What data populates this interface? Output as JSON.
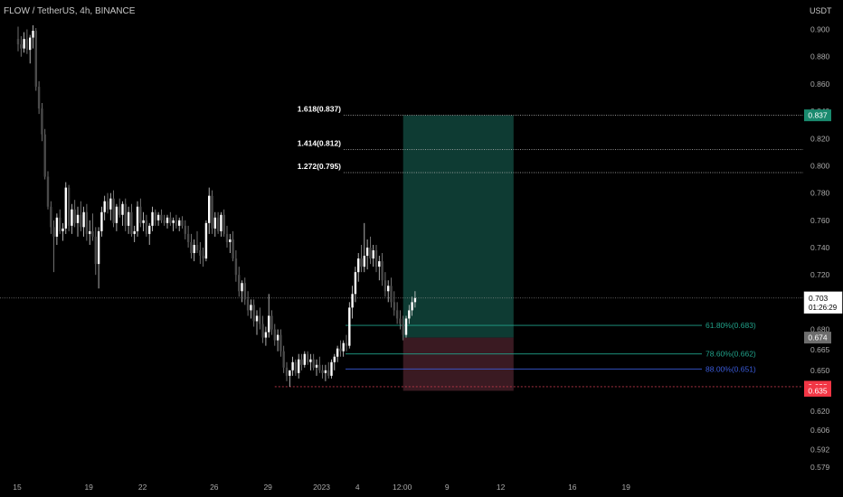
{
  "header": {
    "symbol": "FLOW / TetherUS, 4h, BINANCE",
    "unit": "USDT"
  },
  "colors": {
    "background": "#000000",
    "candle": "#ffffff",
    "wick": "#b0b0b0",
    "profit_zone": "#0e3b33",
    "loss_zone": "#3a1a22",
    "fib_teal": "#21a28a",
    "fib_blue": "#3b5bd9",
    "stop_line": "#c0394a",
    "target_badge": "#1a8a6e",
    "stop_badge": "#f23645",
    "gray_badge": "#6d6d6d",
    "axis_text": "#aaaaaa"
  },
  "chart_data": {
    "type": "candlestick",
    "ylim": [
      0.575,
      0.905
    ],
    "y_ticks": [
      "0.900",
      "0.880",
      "0.860",
      "0.840",
      "0.820",
      "0.800",
      "0.780",
      "0.760",
      "0.740",
      "0.720",
      "0.700",
      "0.680",
      "0.665",
      "0.650",
      "0.635",
      "0.620",
      "0.606",
      "0.592",
      "0.579"
    ],
    "y_tick_values": [
      0.9,
      0.88,
      0.86,
      0.84,
      0.82,
      0.8,
      0.78,
      0.76,
      0.74,
      0.72,
      0.7,
      0.68,
      0.665,
      0.65,
      0.635,
      0.62,
      0.606,
      0.592,
      0.579
    ],
    "x_ticks": [
      {
        "label": "15",
        "at": 0
      },
      {
        "label": "19",
        "at": 24
      },
      {
        "label": "22",
        "at": 42
      },
      {
        "label": "26",
        "at": 66
      },
      {
        "label": "29",
        "at": 84
      },
      {
        "label": "2023",
        "at": 102
      },
      {
        "label": "4",
        "at": 114
      },
      {
        "label": "12:00",
        "at": 129
      },
      {
        "label": "9",
        "at": 144
      },
      {
        "label": "12",
        "at": 162
      },
      {
        "label": "16",
        "at": 186
      },
      {
        "label": "19",
        "at": 204
      }
    ],
    "candles": [
      [
        0.893,
        0.902,
        0.884,
        0.889
      ],
      [
        0.889,
        0.895,
        0.88,
        0.886
      ],
      [
        0.886,
        0.898,
        0.883,
        0.893
      ],
      [
        0.893,
        0.9,
        0.882,
        0.885
      ],
      [
        0.885,
        0.896,
        0.875,
        0.894
      ],
      [
        0.894,
        0.903,
        0.886,
        0.899
      ],
      [
        0.899,
        0.901,
        0.855,
        0.858
      ],
      [
        0.858,
        0.862,
        0.838,
        0.842
      ],
      [
        0.842,
        0.846,
        0.818,
        0.823
      ],
      [
        0.823,
        0.827,
        0.79,
        0.792
      ],
      [
        0.792,
        0.796,
        0.768,
        0.77
      ],
      [
        0.77,
        0.774,
        0.75,
        0.755
      ],
      [
        0.755,
        0.76,
        0.722,
        0.748
      ],
      [
        0.748,
        0.765,
        0.742,
        0.762
      ],
      [
        0.762,
        0.768,
        0.75,
        0.752
      ],
      [
        0.752,
        0.758,
        0.745,
        0.754
      ],
      [
        0.754,
        0.788,
        0.75,
        0.784
      ],
      [
        0.784,
        0.786,
        0.752,
        0.756
      ],
      [
        0.756,
        0.772,
        0.75,
        0.768
      ],
      [
        0.768,
        0.775,
        0.755,
        0.758
      ],
      [
        0.758,
        0.77,
        0.748,
        0.764
      ],
      [
        0.764,
        0.774,
        0.752,
        0.755
      ],
      [
        0.755,
        0.77,
        0.748,
        0.766
      ],
      [
        0.766,
        0.772,
        0.745,
        0.75
      ],
      [
        0.75,
        0.76,
        0.742,
        0.752
      ],
      [
        0.752,
        0.765,
        0.745,
        0.748
      ],
      [
        0.748,
        0.755,
        0.72,
        0.728
      ],
      [
        0.728,
        0.755,
        0.71,
        0.752
      ],
      [
        0.752,
        0.77,
        0.748,
        0.766
      ],
      [
        0.766,
        0.778,
        0.76,
        0.774
      ],
      [
        0.774,
        0.78,
        0.765,
        0.768
      ],
      [
        0.768,
        0.78,
        0.76,
        0.776
      ],
      [
        0.776,
        0.782,
        0.755,
        0.758
      ],
      [
        0.758,
        0.772,
        0.752,
        0.77
      ],
      [
        0.77,
        0.776,
        0.762,
        0.764
      ],
      [
        0.764,
        0.774,
        0.756,
        0.772
      ],
      [
        0.772,
        0.776,
        0.752,
        0.756
      ],
      [
        0.756,
        0.77,
        0.75,
        0.766
      ],
      [
        0.766,
        0.772,
        0.748,
        0.75
      ],
      [
        0.75,
        0.756,
        0.744,
        0.752
      ],
      [
        0.752,
        0.774,
        0.748,
        0.77
      ],
      [
        0.77,
        0.776,
        0.755,
        0.758
      ],
      [
        0.758,
        0.766,
        0.752,
        0.76
      ],
      [
        0.76,
        0.764,
        0.748,
        0.75
      ],
      [
        0.75,
        0.758,
        0.742,
        0.756
      ],
      [
        0.756,
        0.77,
        0.752,
        0.766
      ],
      [
        0.766,
        0.768,
        0.756,
        0.76
      ],
      [
        0.76,
        0.766,
        0.756,
        0.764
      ],
      [
        0.764,
        0.768,
        0.758,
        0.76
      ],
      [
        0.76,
        0.764,
        0.756,
        0.758
      ],
      [
        0.758,
        0.764,
        0.754,
        0.762
      ],
      [
        0.762,
        0.766,
        0.756,
        0.758
      ],
      [
        0.758,
        0.762,
        0.752,
        0.76
      ],
      [
        0.76,
        0.764,
        0.754,
        0.756
      ],
      [
        0.756,
        0.762,
        0.752,
        0.76
      ],
      [
        0.76,
        0.763,
        0.754,
        0.756
      ],
      [
        0.756,
        0.76,
        0.746,
        0.75
      ],
      [
        0.75,
        0.756,
        0.74,
        0.744
      ],
      [
        0.744,
        0.75,
        0.732,
        0.736
      ],
      [
        0.736,
        0.746,
        0.73,
        0.742
      ],
      [
        0.742,
        0.752,
        0.736,
        0.738
      ],
      [
        0.738,
        0.744,
        0.728,
        0.734
      ],
      [
        0.734,
        0.74,
        0.726,
        0.732
      ],
      [
        0.732,
        0.76,
        0.73,
        0.758
      ],
      [
        0.758,
        0.784,
        0.75,
        0.778
      ],
      [
        0.778,
        0.782,
        0.75,
        0.754
      ],
      [
        0.754,
        0.766,
        0.748,
        0.762
      ],
      [
        0.762,
        0.766,
        0.75,
        0.752
      ],
      [
        0.752,
        0.766,
        0.748,
        0.764
      ],
      [
        0.764,
        0.768,
        0.748,
        0.75
      ],
      [
        0.75,
        0.756,
        0.74,
        0.744
      ],
      [
        0.744,
        0.75,
        0.736,
        0.746
      ],
      [
        0.746,
        0.752,
        0.73,
        0.732
      ],
      [
        0.732,
        0.738,
        0.715,
        0.72
      ],
      [
        0.72,
        0.726,
        0.704,
        0.708
      ],
      [
        0.708,
        0.716,
        0.7,
        0.714
      ],
      [
        0.714,
        0.718,
        0.698,
        0.702
      ],
      [
        0.702,
        0.708,
        0.69,
        0.694
      ],
      [
        0.694,
        0.702,
        0.688,
        0.698
      ],
      [
        0.698,
        0.702,
        0.682,
        0.686
      ],
      [
        0.686,
        0.694,
        0.676,
        0.69
      ],
      [
        0.69,
        0.696,
        0.68,
        0.684
      ],
      [
        0.684,
        0.69,
        0.67,
        0.674
      ],
      [
        0.674,
        0.682,
        0.668,
        0.678
      ],
      [
        0.678,
        0.706,
        0.674,
        0.69
      ],
      [
        0.69,
        0.694,
        0.676,
        0.68
      ],
      [
        0.68,
        0.684,
        0.668,
        0.672
      ],
      [
        0.672,
        0.68,
        0.664,
        0.676
      ],
      [
        0.676,
        0.68,
        0.66,
        0.664
      ],
      [
        0.664,
        0.668,
        0.648,
        0.652
      ],
      [
        0.652,
        0.656,
        0.642,
        0.646
      ],
      [
        0.646,
        0.65,
        0.638,
        0.65
      ],
      [
        0.65,
        0.66,
        0.646,
        0.656
      ],
      [
        0.656,
        0.658,
        0.646,
        0.648
      ],
      [
        0.648,
        0.662,
        0.644,
        0.658
      ],
      [
        0.658,
        0.662,
        0.65,
        0.654
      ],
      [
        0.654,
        0.664,
        0.652,
        0.662
      ],
      [
        0.662,
        0.664,
        0.654,
        0.656
      ],
      [
        0.656,
        0.662,
        0.65,
        0.658
      ],
      [
        0.658,
        0.662,
        0.65,
        0.652
      ],
      [
        0.652,
        0.658,
        0.646,
        0.654
      ],
      [
        0.654,
        0.66,
        0.648,
        0.65
      ],
      [
        0.65,
        0.654,
        0.644,
        0.648
      ],
      [
        0.648,
        0.654,
        0.642,
        0.65
      ],
      [
        0.65,
        0.656,
        0.644,
        0.646
      ],
      [
        0.646,
        0.658,
        0.644,
        0.656
      ],
      [
        0.656,
        0.662,
        0.65,
        0.66
      ],
      [
        0.66,
        0.668,
        0.656,
        0.666
      ],
      [
        0.666,
        0.672,
        0.66,
        0.664
      ],
      [
        0.664,
        0.672,
        0.66,
        0.67
      ],
      [
        0.67,
        0.676,
        0.664,
        0.668
      ],
      [
        0.668,
        0.7,
        0.666,
        0.696
      ],
      [
        0.696,
        0.712,
        0.688,
        0.706
      ],
      [
        0.706,
        0.726,
        0.7,
        0.722
      ],
      [
        0.722,
        0.736,
        0.715,
        0.732
      ],
      [
        0.732,
        0.742,
        0.722,
        0.726
      ],
      [
        0.726,
        0.758,
        0.722,
        0.734
      ],
      [
        0.734,
        0.746,
        0.724,
        0.74
      ],
      [
        0.74,
        0.748,
        0.728,
        0.732
      ],
      [
        0.732,
        0.742,
        0.726,
        0.738
      ],
      [
        0.738,
        0.742,
        0.722,
        0.726
      ],
      [
        0.726,
        0.734,
        0.716,
        0.73
      ],
      [
        0.73,
        0.736,
        0.712,
        0.716
      ],
      [
        0.716,
        0.722,
        0.704,
        0.708
      ],
      [
        0.708,
        0.716,
        0.7,
        0.712
      ],
      [
        0.712,
        0.718,
        0.696,
        0.7
      ],
      [
        0.7,
        0.708,
        0.69,
        0.694
      ],
      [
        0.694,
        0.7,
        0.684,
        0.688
      ],
      [
        0.688,
        0.694,
        0.68,
        0.684
      ],
      [
        0.684,
        0.69,
        0.672,
        0.676
      ],
      [
        0.676,
        0.69,
        0.674,
        0.688
      ],
      [
        0.688,
        0.698,
        0.684,
        0.694
      ],
      [
        0.694,
        0.704,
        0.69,
        0.7
      ],
      [
        0.7,
        0.708,
        0.696,
        0.703
      ]
    ],
    "last_price": "0.703",
    "countdown": "01:26:29",
    "fib_extensions": [
      {
        "label": "1.618(0.837)",
        "value": 0.837
      },
      {
        "label": "1.414(0.812)",
        "value": 0.812
      },
      {
        "label": "1.272(0.795)",
        "value": 0.795
      }
    ],
    "fib_retracements": [
      {
        "label": "61.80%(0.683)",
        "value": 0.683,
        "color": "#21a28a"
      },
      {
        "label": "78.60%(0.662)",
        "value": 0.662,
        "color": "#21a28a"
      },
      {
        "label": "88.00%(0.651)",
        "value": 0.651,
        "color": "#3b5bd9"
      }
    ],
    "position": {
      "target": 0.837,
      "entry": 0.674,
      "stop": 0.635,
      "start_index": 129,
      "end_index": 166
    },
    "stop_line": {
      "value": 0.638,
      "start_index": 86,
      "end_index": 224
    },
    "price_badges": [
      {
        "label": "0.837",
        "value": 0.837,
        "kind": "target"
      },
      {
        "label": "0.674",
        "value": 0.674,
        "kind": "entry"
      },
      {
        "label": "0.638",
        "value": 0.638,
        "kind": "stop"
      },
      {
        "label": "0.635",
        "value": 0.635,
        "kind": "stop"
      }
    ]
  }
}
